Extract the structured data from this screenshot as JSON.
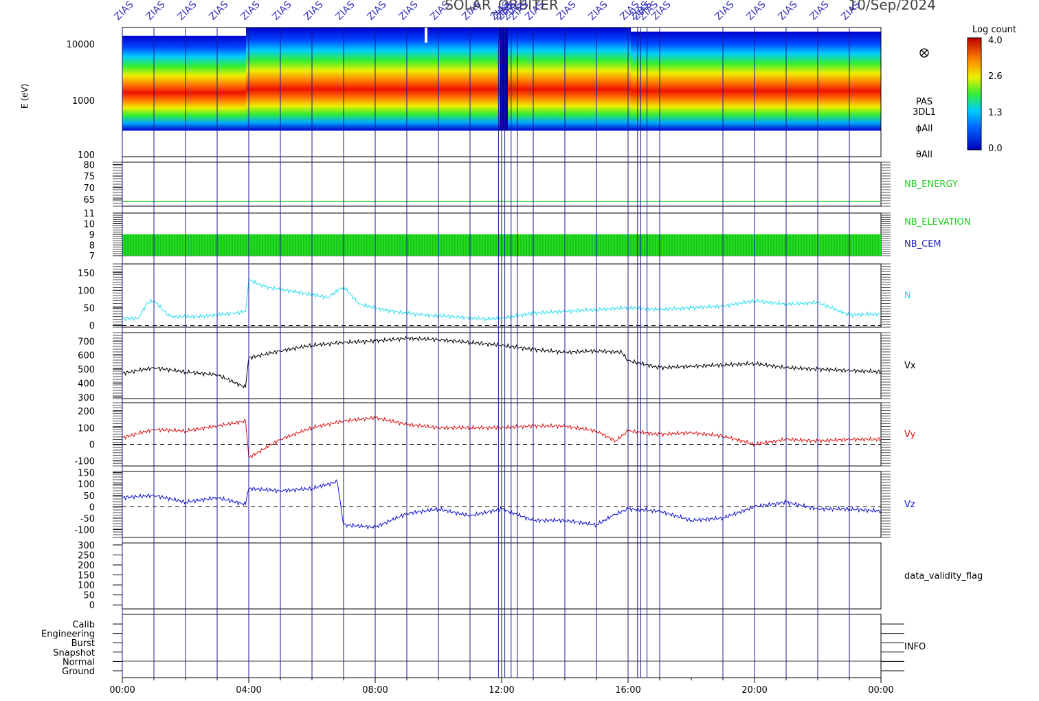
{
  "header": {
    "title": "SOLAR_ORBITER",
    "date": "10/Sep/2024",
    "marker_label": "ZIAS"
  },
  "colorbar": {
    "title": "Log count",
    "ticks": [
      "4.0",
      "2.6",
      "1.3",
      "0.0"
    ],
    "min": 0.0,
    "max": 4.0
  },
  "time_axis": {
    "ticks": [
      "00:00",
      "04:00",
      "08:00",
      "12:00",
      "16:00",
      "20:00",
      "00:00"
    ],
    "range_hours": [
      0,
      24
    ],
    "minor_step_hours": 1
  },
  "markers_hours": [
    0.0,
    1.0,
    2.0,
    3.0,
    4.0,
    5.0,
    6.0,
    7.0,
    8.0,
    9.0,
    10.0,
    11.0,
    11.9,
    12.0,
    12.1,
    12.3,
    12.5,
    13.0,
    14.0,
    15.0,
    16.0,
    16.3,
    16.4,
    16.6,
    17.0,
    19.0,
    20.0,
    21.0,
    22.0,
    23.0
  ],
  "panels": {
    "spectrogram": {
      "ylabel": "E (eV)",
      "yticks": [
        "10000",
        "1000",
        "100"
      ],
      "labels": [
        "PAS",
        "3DL1",
        "ϕAll",
        "θAll"
      ],
      "icon": "cross-circle-icon"
    },
    "energy": {
      "label": "NB_ENERGY",
      "yticks": [
        "80",
        "75",
        "70",
        "65"
      ],
      "value": 64,
      "ylim": [
        62,
        81
      ],
      "color": "#22cc22"
    },
    "elevation": {
      "labels": [
        "NB_ELEVATION",
        "NB_CEM"
      ],
      "yticks": [
        "11",
        "10",
        "9",
        "8",
        "7"
      ],
      "ylim": [
        7,
        11
      ],
      "band": [
        7.0,
        9.0
      ],
      "colors": [
        "#22cc22",
        "#2222bb"
      ]
    },
    "density": {
      "label": "N",
      "yticks": [
        "150",
        "100",
        "50",
        "0"
      ],
      "ylim": [
        -5,
        175
      ],
      "color": "#22ddee"
    },
    "vx": {
      "label": "Vx",
      "yticks": [
        "700",
        "600",
        "500",
        "400",
        "300"
      ],
      "ylim": [
        290,
        760
      ],
      "color": "#000000"
    },
    "vy": {
      "label": "Vy",
      "yticks": [
        "200",
        "100",
        "0",
        "-100"
      ],
      "ylim": [
        -130,
        250
      ],
      "color": "#dd1111"
    },
    "vz": {
      "label": "Vz",
      "yticks": [
        "150",
        "100",
        "50",
        "0",
        "-50",
        "-100"
      ],
      "ylim": [
        -135,
        155
      ],
      "color": "#1111cc"
    },
    "validity": {
      "label": "data_validity_flag",
      "yticks": [
        "300",
        "250",
        "200",
        "150",
        "100",
        "50",
        "0"
      ],
      "ylim": [
        -20,
        310
      ]
    },
    "info": {
      "label": "INFO",
      "yticks": [
        "Calib",
        "Engineering",
        "Burst",
        "Snapshot",
        "Normal",
        "Ground"
      ]
    }
  },
  "chart_data": {
    "type": "line",
    "x_label": "",
    "x_units": "hours",
    "series": [
      {
        "name": "N",
        "x": [
          0,
          0.5,
          0.8,
          1.0,
          1.5,
          2.5,
          3.5,
          3.9,
          4.0,
          4.5,
          5.5,
          6.5,
          7.0,
          7.5,
          8.5,
          9.5,
          10.5,
          11.5,
          12.0,
          13.0,
          14.0,
          15.0,
          16.0,
          17.0,
          18.0,
          19.0,
          20.0,
          21.0,
          22.0,
          23.0,
          24.0
        ],
        "y": [
          20,
          20,
          65,
          70,
          25,
          25,
          35,
          40,
          130,
          110,
          95,
          80,
          110,
          60,
          40,
          30,
          25,
          18,
          20,
          35,
          40,
          45,
          50,
          45,
          50,
          55,
          70,
          60,
          65,
          30,
          32
        ]
      },
      {
        "name": "Vx",
        "x": [
          0,
          1.0,
          2.0,
          3.0,
          3.9,
          4.0,
          5.0,
          6.0,
          7.0,
          8.0,
          9.0,
          10.0,
          11.0,
          12.0,
          13.0,
          14.0,
          15.0,
          15.8,
          16.0,
          17.0,
          18.0,
          19.0,
          20.0,
          21.0,
          22.0,
          23.0,
          24.0
        ],
        "y": [
          470,
          510,
          480,
          460,
          370,
          580,
          630,
          670,
          690,
          700,
          720,
          710,
          690,
          670,
          640,
          620,
          630,
          620,
          560,
          510,
          520,
          530,
          540,
          510,
          500,
          490,
          480
        ]
      },
      {
        "name": "Vy",
        "x": [
          0,
          1.0,
          2.0,
          3.0,
          3.9,
          4.0,
          5.0,
          6.0,
          7.0,
          8.0,
          9.0,
          10.0,
          11.0,
          12.0,
          13.0,
          14.0,
          15.0,
          15.6,
          16.0,
          17.0,
          18.0,
          19.0,
          20.0,
          21.0,
          22.0,
          23.0,
          24.0
        ],
        "y": [
          40,
          90,
          80,
          110,
          140,
          -80,
          30,
          100,
          140,
          160,
          120,
          100,
          100,
          100,
          110,
          110,
          80,
          20,
          80,
          60,
          70,
          50,
          0,
          30,
          20,
          30,
          30
        ]
      },
      {
        "name": "Vz",
        "x": [
          0,
          1.0,
          2.0,
          3.0,
          3.9,
          4.0,
          5.0,
          6.0,
          6.8,
          7.0,
          8.0,
          9.0,
          10.0,
          11.0,
          12.0,
          13.0,
          14.0,
          15.0,
          15.5,
          16.0,
          17.0,
          18.0,
          19.0,
          20.0,
          21.0,
          22.0,
          23.0,
          24.0
        ],
        "y": [
          40,
          50,
          20,
          40,
          10,
          80,
          70,
          80,
          110,
          -80,
          -90,
          -30,
          -10,
          -40,
          -10,
          -60,
          -60,
          -80,
          -40,
          -10,
          -20,
          -60,
          -50,
          0,
          20,
          -10,
          -10,
          -20
        ]
      }
    ]
  }
}
